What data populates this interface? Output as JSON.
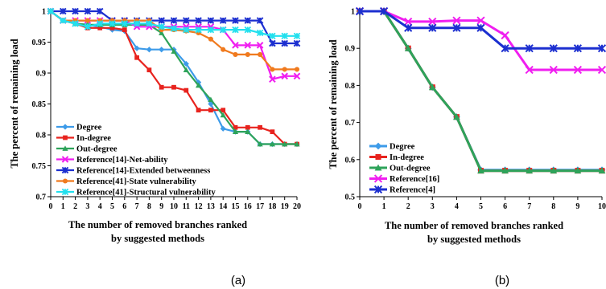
{
  "figures": [
    {
      "caption": "(a)",
      "xlabel_line1": "The number of removed branches ranked",
      "xlabel_line2": "by suggested methods",
      "ylabel": "The percent of remaining load"
    },
    {
      "caption": "(b)",
      "xlabel_line1": "The number of removed branches ranked",
      "xlabel_line2": "by suggested methods",
      "ylabel": "The percent of remaining load"
    }
  ],
  "chart_data": [
    {
      "type": "line",
      "title": "",
      "xlabel": "The number of removed branches ranked by suggested methods",
      "ylabel": "The percent of remaining load",
      "xlim": [
        0,
        20
      ],
      "ylim": [
        0.7,
        1.0
      ],
      "x": [
        0,
        1,
        2,
        3,
        4,
        5,
        6,
        7,
        8,
        9,
        10,
        11,
        12,
        13,
        14,
        15,
        16,
        17,
        18,
        19,
        20
      ],
      "xticks": [
        0,
        1,
        2,
        3,
        4,
        5,
        6,
        7,
        8,
        9,
        10,
        11,
        12,
        13,
        14,
        15,
        16,
        17,
        18,
        19,
        20
      ],
      "yticks": [
        0.7,
        0.75,
        0.8,
        0.85,
        0.9,
        0.95,
        1
      ],
      "ytick_labels": [
        "0.7",
        "0.75",
        "0.8",
        "0.85",
        "0.9",
        "0.95",
        "1"
      ],
      "legend_position": "bottom-left",
      "series": [
        {
          "name": "Degree",
          "color": "#3d9be9",
          "marker": "diamond",
          "values": [
            1,
            0.985,
            0.98,
            0.978,
            0.975,
            0.97,
            0.968,
            0.94,
            0.938,
            0.938,
            0.938,
            0.915,
            0.885,
            0.85,
            0.81,
            0.805,
            0.805,
            0.785,
            0.785,
            0.785,
            0.785
          ]
        },
        {
          "name": "In-degree",
          "color": "#e8231e",
          "marker": "square",
          "values": [
            1,
            0.985,
            0.98,
            0.973,
            0.973,
            0.973,
            0.97,
            0.925,
            0.905,
            0.877,
            0.877,
            0.872,
            0.84,
            0.84,
            0.84,
            0.812,
            0.812,
            0.812,
            0.805,
            0.785,
            0.785
          ]
        },
        {
          "name": "Out-degree",
          "color": "#2ea35a",
          "marker": "triangle",
          "values": [
            1,
            0.985,
            0.98,
            0.978,
            0.978,
            0.978,
            0.978,
            0.978,
            0.978,
            0.965,
            0.935,
            0.905,
            0.88,
            0.857,
            0.832,
            0.805,
            0.805,
            0.785,
            0.785,
            0.785,
            0.785
          ]
        },
        {
          "name": "Reference[14]-Net-ability",
          "color": "#f01ef0",
          "marker": "x",
          "values": [
            1,
            0.985,
            0.985,
            0.985,
            0.985,
            0.985,
            0.985,
            0.975,
            0.975,
            0.975,
            0.975,
            0.975,
            0.975,
            0.975,
            0.97,
            0.945,
            0.945,
            0.945,
            0.89,
            0.895,
            0.895
          ]
        },
        {
          "name": "Reference[14]-Extended betweenness",
          "color": "#1c2fd0",
          "marker": "star",
          "values": [
            1,
            1,
            1,
            1,
            1,
            0.985,
            0.985,
            0.985,
            0.985,
            0.985,
            0.985,
            0.985,
            0.985,
            0.985,
            0.985,
            0.985,
            0.985,
            0.985,
            0.948,
            0.948,
            0.948
          ]
        },
        {
          "name": "Reference[41]-State vulnerability",
          "color": "#f07a1e",
          "marker": "circle",
          "values": [
            1,
            0.985,
            0.985,
            0.985,
            0.985,
            0.985,
            0.985,
            0.985,
            0.985,
            0.97,
            0.97,
            0.968,
            0.965,
            0.955,
            0.938,
            0.93,
            0.93,
            0.93,
            0.906,
            0.906,
            0.906
          ]
        },
        {
          "name": "Reference[41]-Structural vulnerability",
          "color": "#22e0ee",
          "marker": "asterisk",
          "values": [
            1,
            0.985,
            0.98,
            0.975,
            0.98,
            0.98,
            0.98,
            0.98,
            0.98,
            0.975,
            0.972,
            0.97,
            0.97,
            0.97,
            0.97,
            0.97,
            0.97,
            0.965,
            0.96,
            0.96,
            0.96
          ]
        }
      ]
    },
    {
      "type": "line",
      "title": "",
      "xlabel": "The number of removed branches ranked by suggested methods",
      "ylabel": "The percent of remaining load",
      "xlim": [
        0,
        10
      ],
      "ylim": [
        0.5,
        1.0
      ],
      "x": [
        0,
        1,
        2,
        3,
        4,
        5,
        6,
        7,
        8,
        9,
        10
      ],
      "xticks": [
        0,
        1,
        2,
        3,
        4,
        5,
        6,
        7,
        8,
        9,
        10
      ],
      "yticks": [
        0.5,
        0.6,
        0.7,
        0.8,
        0.9,
        1
      ],
      "ytick_labels": [
        "0.5",
        "0.6",
        "0.7",
        "0.8",
        "0.9",
        "1"
      ],
      "legend_position": "bottom-left",
      "series": [
        {
          "name": "Degree",
          "color": "#3d9be9",
          "marker": "diamond",
          "values": [
            1,
            1,
            0.9,
            0.795,
            0.715,
            0.572,
            0.572,
            0.572,
            0.572,
            0.572,
            0.572
          ]
        },
        {
          "name": "In-degree",
          "color": "#e8231e",
          "marker": "square",
          "values": [
            1,
            1,
            0.9,
            0.795,
            0.715,
            0.57,
            0.57,
            0.57,
            0.57,
            0.57,
            0.57
          ]
        },
        {
          "name": "Out-degree",
          "color": "#2ea35a",
          "marker": "triangle",
          "values": [
            1,
            1,
            0.9,
            0.795,
            0.715,
            0.57,
            0.57,
            0.57,
            0.57,
            0.57,
            0.57
          ]
        },
        {
          "name": "Reference[16]",
          "color": "#f01ef0",
          "marker": "x",
          "values": [
            1,
            1,
            0.972,
            0.972,
            0.975,
            0.975,
            0.935,
            0.842,
            0.842,
            0.842,
            0.842
          ]
        },
        {
          "name": "Reference[4]",
          "color": "#1c2fd0",
          "marker": "star",
          "values": [
            1,
            1,
            0.955,
            0.955,
            0.955,
            0.955,
            0.9,
            0.9,
            0.9,
            0.9,
            0.9
          ]
        }
      ]
    }
  ]
}
